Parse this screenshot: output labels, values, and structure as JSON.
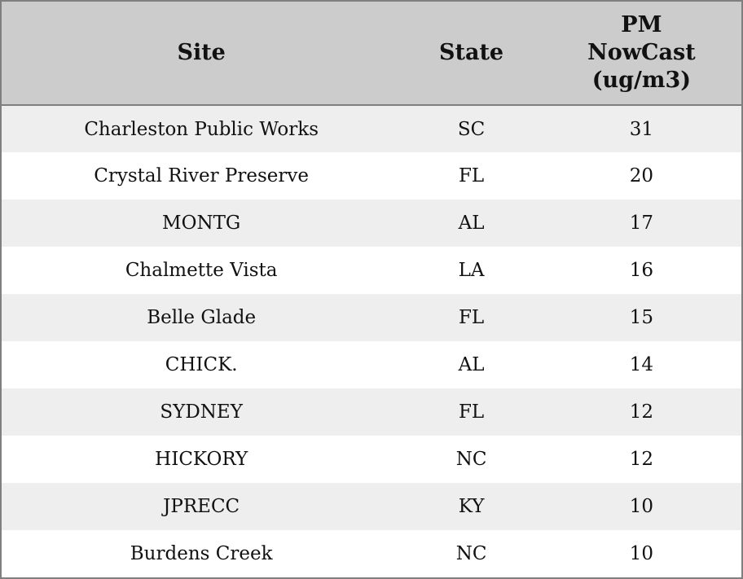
{
  "table": {
    "headers": {
      "site": "Site",
      "state": "State",
      "pm_nowcast": "PM NowCast (ug/m3)"
    },
    "rows": [
      {
        "site": "Charleston Public Works",
        "state": "SC",
        "pm_nowcast": "31"
      },
      {
        "site": "Crystal River Preserve",
        "state": "FL",
        "pm_nowcast": "20"
      },
      {
        "site": "MONTG",
        "state": "AL",
        "pm_nowcast": "17"
      },
      {
        "site": "Chalmette Vista",
        "state": "LA",
        "pm_nowcast": "16"
      },
      {
        "site": "Belle Glade",
        "state": "FL",
        "pm_nowcast": "15"
      },
      {
        "site": "CHICK.",
        "state": "AL",
        "pm_nowcast": "14"
      },
      {
        "site": "SYDNEY",
        "state": "FL",
        "pm_nowcast": "12"
      },
      {
        "site": "HICKORY",
        "state": "NC",
        "pm_nowcast": "12"
      },
      {
        "site": "JPRECC",
        "state": "KY",
        "pm_nowcast": "10"
      },
      {
        "site": "Burdens Creek",
        "state": "NC",
        "pm_nowcast": "10"
      }
    ]
  },
  "chart_data": {
    "type": "table",
    "columns": [
      "Site",
      "State",
      "PM NowCast (ug/m3)"
    ],
    "rows": [
      [
        "Charleston Public Works",
        "SC",
        31
      ],
      [
        "Crystal River Preserve",
        "FL",
        20
      ],
      [
        "MONTG",
        "AL",
        17
      ],
      [
        "Chalmette Vista",
        "LA",
        16
      ],
      [
        "Belle Glade",
        "FL",
        15
      ],
      [
        "CHICK.",
        "AL",
        14
      ],
      [
        "SYDNEY",
        "FL",
        12
      ],
      [
        "HICKORY",
        "NC",
        12
      ],
      [
        "JPRECC",
        "KY",
        10
      ],
      [
        "Burdens Creek",
        "NC",
        10
      ]
    ]
  },
  "colors": {
    "header_bg": "#cccccc",
    "row_alt_bg": "#eeeeee",
    "row_bg": "#ffffff",
    "border": "#7f7f7f",
    "text": "#111111"
  }
}
